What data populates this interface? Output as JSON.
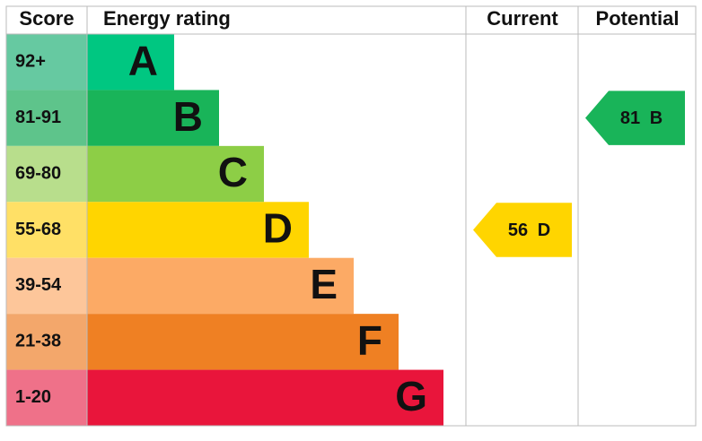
{
  "header": {
    "score": "Score",
    "rating": "Energy rating",
    "current": "Current",
    "potential": "Potential"
  },
  "bands": [
    {
      "range": "92+",
      "letter": "A",
      "color": "#00c781",
      "light": "#66c9a1"
    },
    {
      "range": "81-91",
      "letter": "B",
      "color": "#19b459",
      "light": "#5ec48b"
    },
    {
      "range": "69-80",
      "letter": "C",
      "color": "#8dce46",
      "light": "#b8de8c"
    },
    {
      "range": "55-68",
      "letter": "D",
      "color": "#ffd500",
      "light": "#ffe066"
    },
    {
      "range": "39-54",
      "letter": "E",
      "color": "#fcaa65",
      "light": "#fdc69a"
    },
    {
      "range": "21-38",
      "letter": "F",
      "color": "#ef8023",
      "light": "#f3a76b"
    },
    {
      "range": "1-20",
      "letter": "G",
      "color": "#e9153b",
      "light": "#ef7189"
    }
  ],
  "current": {
    "value": 56,
    "letter": "D"
  },
  "potential": {
    "value": 81,
    "letter": "B"
  }
}
